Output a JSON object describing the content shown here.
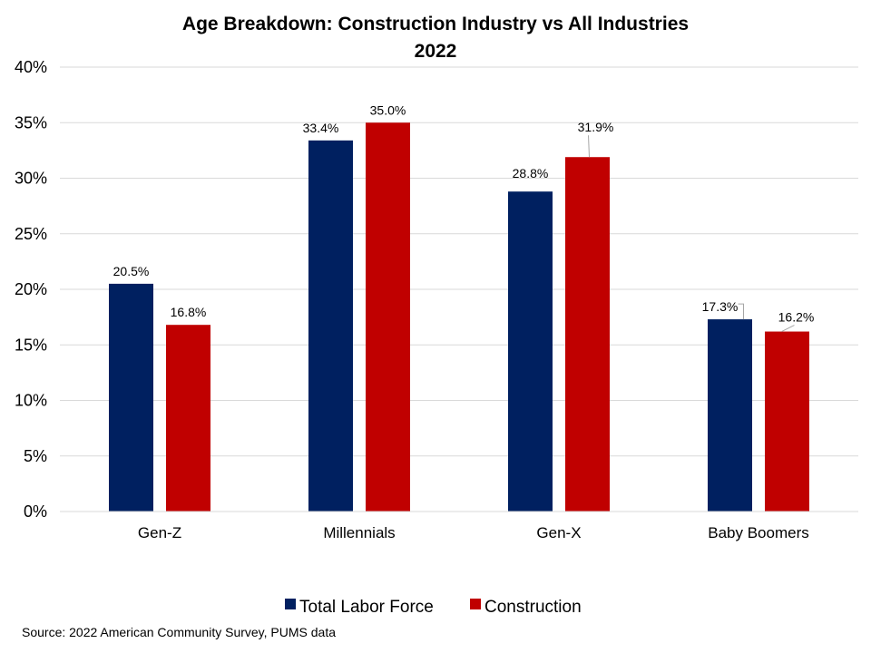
{
  "source_note": "Source: 2022 American Community Survey, PUMS data",
  "chart_data": {
    "type": "bar",
    "title": "Age Breakdown: Construction Industry vs All Industries",
    "subtitle": "2022",
    "xlabel": "",
    "ylabel": "",
    "categories": [
      "Gen-Z",
      "Millennials",
      "Gen-X",
      "Baby Boomers"
    ],
    "series": [
      {
        "name": "Total Labor Force",
        "values": [
          20.5,
          33.4,
          28.8,
          17.3
        ],
        "labels": [
          "20.5%",
          "33.4%",
          "28.8%",
          "17.3%"
        ],
        "color": "#002060"
      },
      {
        "name": "Construction",
        "values": [
          16.8,
          35.0,
          31.9,
          16.2
        ],
        "labels": [
          "16.8%",
          "35.0%",
          "31.9%",
          "16.2%"
        ],
        "color": "#C00000"
      }
    ],
    "ylim": [
      0,
      40
    ],
    "yticks": [
      0,
      5,
      10,
      15,
      20,
      25,
      30,
      35,
      40
    ],
    "ytick_labels": [
      "0%",
      "5%",
      "10%",
      "15%",
      "20%",
      "25%",
      "30%",
      "35%",
      "40%"
    ],
    "grid": true,
    "gridline_color": "#D9D9D9",
    "legend_position": "bottom"
  }
}
